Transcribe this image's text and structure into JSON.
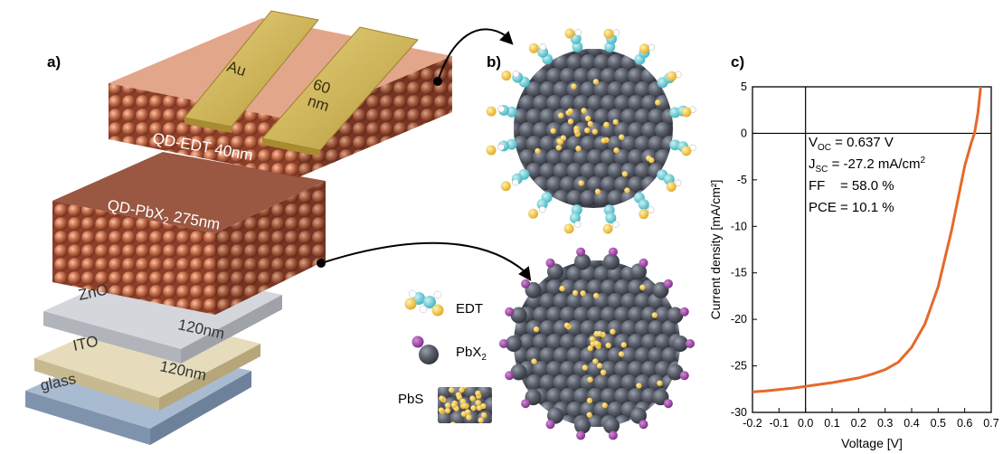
{
  "panels": {
    "a": "a)",
    "b": "b)",
    "c": "c)"
  },
  "device": {
    "electrode": "Au",
    "electrode_thickness": [
      "60",
      "nm"
    ],
    "qd_edt": "QD-EDT 40nm",
    "qd_pbx_prefix": "QD-PbX",
    "qd_pbx_sub": "2",
    "qd_pbx_suffix": " 275nm",
    "zno": "ZnO",
    "zno_thickness": "120nm",
    "ito": "ITO",
    "ito_thickness": "120nm",
    "glass": "glass"
  },
  "legend": {
    "edt": "EDT",
    "pbx_prefix": "PbX",
    "pbx_sub": "2",
    "pbs": "PbS"
  },
  "colors": {
    "glass": "#8ea3bc",
    "ito": "#d7cba7",
    "zno": "#c9ccd1",
    "qd_edt": "#dda083",
    "qd_pbx": "#8c4a34",
    "gold": "#cdb558",
    "nc_core": "#555a66",
    "sulfur": "#f3c43c",
    "halide": "#9b3ea5",
    "carbon": "#5fc8d2",
    "curve": "#e5692a"
  },
  "chart_data": {
    "type": "line",
    "title": "",
    "xlabel": "Voltage [V]",
    "ylabel": "Current density [mA/cm²]",
    "xlim": [
      -0.2,
      0.7
    ],
    "ylim": [
      -30,
      5
    ],
    "xticks": [
      "-0.2",
      "-0.1",
      "0.0",
      "0.1",
      "0.2",
      "0.3",
      "0.4",
      "0.5",
      "0.6",
      "0.7"
    ],
    "yticks": [
      "5",
      "0",
      "-5",
      "-10",
      "-15",
      "-20",
      "-25",
      "-30"
    ],
    "grid": false,
    "series": [
      {
        "color": "#e5692a",
        "x": [
          -0.2,
          -0.15,
          -0.1,
          -0.05,
          0.0,
          0.05,
          0.1,
          0.15,
          0.2,
          0.25,
          0.3,
          0.35,
          0.4,
          0.45,
          0.5,
          0.55,
          0.6,
          0.625,
          0.637,
          0.65,
          0.66
        ],
        "y": [
          -27.8,
          -27.7,
          -27.55,
          -27.4,
          -27.2,
          -27.0,
          -26.8,
          -26.55,
          -26.3,
          -25.9,
          -25.4,
          -24.6,
          -23.0,
          -20.5,
          -16.5,
          -10.5,
          -3.5,
          -1.0,
          0.0,
          2.2,
          5.0
        ]
      }
    ],
    "annotations": {
      "voc_prefix": "V",
      "voc_sub": "OC",
      "voc_value": " = 0.637 V",
      "jsc_prefix": "J",
      "jsc_sub": "SC",
      "jsc_value": " = -27.2 mA/cm",
      "jsc_sup": "2",
      "ff": "FF    = 58.0 %",
      "pce": "PCE = 10.1 %"
    }
  }
}
